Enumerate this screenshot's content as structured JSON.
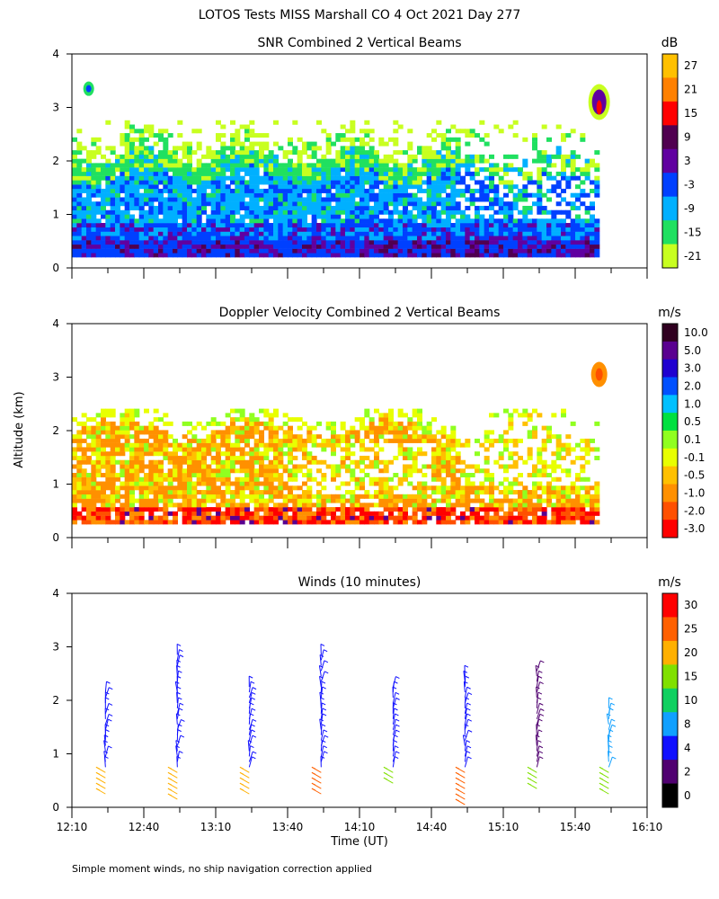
{
  "figure": {
    "title": "LOTOS Tests MISS Marshall CO   4 Oct 2021 Day 277",
    "ylabel": "Altitude (km)",
    "xlabel": "Time (UT)",
    "footnote": "Simple moment winds, no ship navigation correction applied"
  },
  "chart_data": [
    {
      "type": "heatmap",
      "title": "SNR Combined 2 Vertical Beams",
      "unit": "dB",
      "xlim_min": [
        730,
        970
      ],
      "ylim_km": [
        0,
        4
      ],
      "yticks": [
        "0",
        "1",
        "2",
        "3",
        "4"
      ],
      "colorbar_labels": [
        "27",
        "21",
        "15",
        "9",
        "3",
        "-3",
        "-9",
        "-15",
        "-21"
      ],
      "colorbar_colors": [
        "#ffc000",
        "#ff8000",
        "#ff0000",
        "#500050",
        "#6000a0",
        "#0040ff",
        "#00b0ff",
        "#20e060",
        "#c8ff20"
      ],
      "description_layers": [
        {
          "top_km": 2.05,
          "level": "-15",
          "color": "#20e060"
        },
        {
          "top_km": 1.85,
          "level": "-9",
          "color": "#00b0ff"
        },
        {
          "top_km": 0.75,
          "level": "-3",
          "color": "#0040ff"
        }
      ]
    },
    {
      "type": "heatmap",
      "title": "Doppler Velocity Combined 2 Vertical Beams",
      "unit": "m/s",
      "xlim_min": [
        730,
        970
      ],
      "ylim_km": [
        0,
        4
      ],
      "yticks": [
        "0",
        "1",
        "2",
        "3",
        "4"
      ],
      "colorbar_labels": [
        "10.0",
        "5.0",
        "3.0",
        "2.0",
        "1.0",
        "0.5",
        "0.1",
        "-0.1",
        "-0.5",
        "-1.0",
        "-2.0",
        "-3.0"
      ],
      "colorbar_colors": [
        "#300020",
        "#5a0090",
        "#2000d0",
        "#0050ff",
        "#00c0ff",
        "#00e040",
        "#90ff20",
        "#e8ff00",
        "#ffc000",
        "#ff9000",
        "#ff5000",
        "#ff0000"
      ]
    },
    {
      "type": "scatter",
      "title": "Winds (10 minutes)",
      "unit": "m/s",
      "xlim_min": [
        730,
        970
      ],
      "ylim_km": [
        0,
        4
      ],
      "yticks": [
        "0",
        "1",
        "2",
        "3",
        "4"
      ],
      "xticks": [
        "12:10",
        "12:40",
        "13:10",
        "13:40",
        "14:10",
        "14:40",
        "15:10",
        "15:40",
        "16:10"
      ],
      "colorbar_labels": [
        "30",
        "25",
        "20",
        "15",
        "10",
        "8",
        "4",
        "2",
        "0"
      ],
      "colorbar_colors": [
        "#ff0000",
        "#ff6000",
        "#ffb000",
        "#80e000",
        "#10d060",
        "#10a0ff",
        "#1010ff",
        "#500070",
        "#000000"
      ],
      "profiles": [
        {
          "time_min": 744,
          "base_km": 0.2,
          "top_km": 2.2,
          "speed_ms": 4,
          "low_speed_ms": 20
        },
        {
          "time_min": 774,
          "base_km": 0.1,
          "top_km": 2.9,
          "speed_ms": 4,
          "low_speed_ms": 20
        },
        {
          "time_min": 804,
          "base_km": 0.2,
          "top_km": 2.3,
          "speed_ms": 4,
          "low_speed_ms": 20
        },
        {
          "time_min": 834,
          "base_km": 0.2,
          "top_km": 2.9,
          "speed_ms": 4,
          "low_speed_ms": 25
        },
        {
          "time_min": 864,
          "base_km": 0.4,
          "top_km": 2.3,
          "speed_ms": 4,
          "low_speed_ms": 15
        },
        {
          "time_min": 894,
          "base_km": 0.0,
          "top_km": 2.5,
          "speed_ms": 4,
          "low_speed_ms": 25
        },
        {
          "time_min": 924,
          "base_km": 0.3,
          "top_km": 2.6,
          "speed_ms": 2,
          "low_speed_ms": 15
        },
        {
          "time_min": 954,
          "base_km": 0.2,
          "top_km": 1.9,
          "speed_ms": 8,
          "low_speed_ms": 15
        }
      ]
    }
  ]
}
